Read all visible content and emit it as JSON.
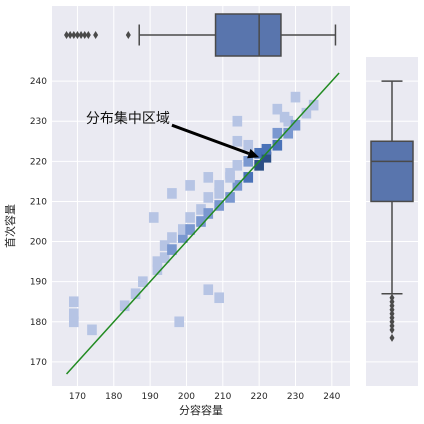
{
  "chart_data": {
    "type": "heatmap",
    "xlabel": "分容容量",
    "ylabel": "首次容量",
    "xlim": [
      163,
      245
    ],
    "ylim": [
      164,
      246
    ],
    "xticks": [
      170,
      180,
      190,
      200,
      210,
      220,
      230,
      240
    ],
    "yticks": [
      170,
      180,
      190,
      200,
      210,
      220,
      230,
      240
    ],
    "grid": true,
    "annotation": {
      "text": "分布集中区域",
      "arrow_from": [
        196,
        229
      ],
      "arrow_to": [
        220,
        221
      ]
    },
    "reference_line": {
      "from": [
        167,
        167
      ],
      "to": [
        242,
        242
      ],
      "color": "#228b22"
    },
    "histogram": {
      "bin_width": 2.65,
      "cells": [
        [
          169,
          185,
          1
        ],
        [
          169,
          182,
          1
        ],
        [
          169,
          180,
          1
        ],
        [
          174,
          178,
          1
        ],
        [
          183,
          184,
          1
        ],
        [
          186,
          187,
          1
        ],
        [
          188,
          190,
          1
        ],
        [
          192,
          193,
          1
        ],
        [
          192,
          195,
          1
        ],
        [
          194,
          196,
          1
        ],
        [
          194,
          199,
          1
        ],
        [
          196,
          198,
          2
        ],
        [
          196,
          201,
          1
        ],
        [
          199,
          201,
          2
        ],
        [
          199,
          203,
          1
        ],
        [
          201,
          203,
          2
        ],
        [
          201,
          206,
          1
        ],
        [
          204,
          205,
          2
        ],
        [
          204,
          208,
          1
        ],
        [
          206,
          207,
          2
        ],
        [
          206,
          211,
          1
        ],
        [
          209,
          209,
          2
        ],
        [
          209,
          214,
          1
        ],
        [
          212,
          211,
          2
        ],
        [
          212,
          217,
          1
        ],
        [
          214,
          214,
          2
        ],
        [
          214,
          219,
          1
        ],
        [
          217,
          216,
          3
        ],
        [
          217,
          220,
          2
        ],
        [
          220,
          219,
          4
        ],
        [
          220,
          222,
          3
        ],
        [
          222,
          221,
          4
        ],
        [
          222,
          223,
          3
        ],
        [
          225,
          224,
          3
        ],
        [
          225,
          227,
          2
        ],
        [
          228,
          227,
          2
        ],
        [
          228,
          230,
          1
        ],
        [
          230,
          229,
          2
        ],
        [
          233,
          232,
          1
        ],
        [
          235,
          234,
          1
        ],
        [
          198,
          180,
          1
        ],
        [
          206,
          188,
          1
        ],
        [
          209,
          186,
          1
        ],
        [
          196,
          212,
          1
        ],
        [
          201,
          214,
          1
        ],
        [
          206,
          216,
          1
        ],
        [
          209,
          212,
          1
        ],
        [
          212,
          216,
          1
        ],
        [
          214,
          225,
          1
        ],
        [
          214,
          230,
          1
        ],
        [
          217,
          224,
          1
        ],
        [
          225,
          233,
          1
        ],
        [
          227,
          231,
          1
        ],
        [
          230,
          236,
          1
        ],
        [
          191,
          206,
          1
        ]
      ]
    },
    "marginal_x_box": {
      "whisker_low": 187,
      "q1": 208,
      "median": 220,
      "q3": 226,
      "whisker_high": 241,
      "outliers": [
        167,
        168,
        169,
        170,
        171,
        172,
        173,
        175,
        184
      ]
    },
    "marginal_y_box": {
      "whisker_low": 187,
      "q1": 210,
      "median": 220,
      "q3": 225,
      "whisker_high": 240,
      "outliers": [
        176,
        178,
        179,
        180,
        181,
        182,
        183,
        184,
        185,
        186
      ]
    },
    "colors": {
      "cell_light": "#b6c4e4",
      "cell_mid": "#7a98d0",
      "cell_dark": "#4a72b8",
      "cell_darkest": "#2c4f86",
      "box_fill": "#5975ad",
      "plot_bg": "#eaeaf2",
      "grid": "#ffffff",
      "line": "#228b22",
      "arrow": "#000000",
      "whisker": "#4a4a4a"
    }
  }
}
